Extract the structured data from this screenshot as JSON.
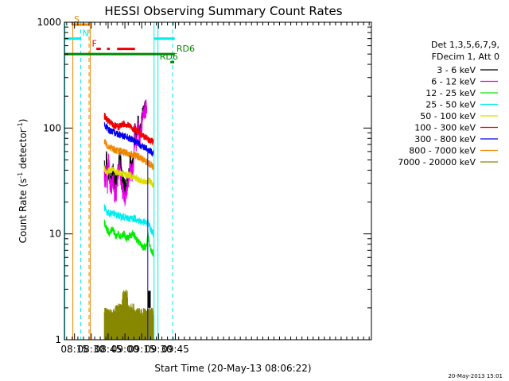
{
  "chart_data": {
    "type": "line",
    "title": "HESSI Observing Summary Count Rates",
    "xlabel": "Start Time (20-May-13 08:06:22)",
    "ylabel_main": "Count Rate (s",
    "ylabel_sup1": "-1",
    "ylabel_mid": " detector",
    "ylabel_sup2": "-1",
    "ylabel_end": ")",
    "timestamp": "20-May-2013 15:01",
    "x_range_min": [
      486,
      760
    ],
    "x_ticks": [
      {
        "min": 495,
        "label": "08:15"
      },
      {
        "min": 510,
        "label": "08:30"
      },
      {
        "min": 525,
        "label": "08:45"
      },
      {
        "min": 540,
        "label": "09:00"
      },
      {
        "min": 555,
        "label": "09:15"
      },
      {
        "min": 570,
        "label": "09:30"
      },
      {
        "min": 585,
        "label": "09:45"
      }
    ],
    "y_scale": "log",
    "y_range": [
      1,
      1000
    ],
    "y_ticks": [
      {
        "value": 1000,
        "label": "1000"
      },
      {
        "value": 100,
        "label": "100"
      },
      {
        "value": 10,
        "label": "10"
      },
      {
        "value": 1,
        "label": "1"
      }
    ],
    "legend": {
      "header1": "Det 1,3,5,6,7,9,",
      "header2": "FDecim 1, Att 0",
      "position": "right"
    },
    "series": [
      {
        "name": "3 - 6 keV",
        "color": "#000000",
        "points": [
          [
            521.6,
            45
          ],
          [
            522.5,
            35
          ],
          [
            523.5,
            55
          ],
          [
            524.5,
            36
          ],
          [
            525.5,
            40
          ],
          [
            526.5,
            35
          ],
          [
            528,
            34
          ],
          [
            529.5,
            38
          ],
          [
            531,
            30
          ],
          [
            532.5,
            32
          ],
          [
            534,
            40
          ],
          [
            535.5,
            55
          ],
          [
            537,
            38
          ],
          [
            538.5,
            30
          ],
          [
            540,
            27
          ],
          [
            541.5,
            28
          ],
          [
            543,
            34
          ],
          [
            544.5,
            48
          ],
          [
            546,
            42
          ],
          [
            547.5,
            50
          ],
          [
            549,
            110
          ],
          [
            550,
            80
          ],
          [
            551.5,
            125
          ],
          [
            553,
            85
          ],
          [
            554.5,
            110
          ],
          [
            556,
            150
          ],
          [
            557.5,
            160
          ],
          [
            558.5,
            155
          ],
          [
            559.5,
            160
          ]
        ]
      },
      {
        "name": "6 - 12 keV",
        "color": "#e800e8",
        "points": [
          [
            521.6,
            38
          ],
          [
            522.5,
            28
          ],
          [
            523.5,
            40
          ],
          [
            524.5,
            28
          ],
          [
            525.5,
            50
          ],
          [
            526.5,
            30
          ],
          [
            528,
            28
          ],
          [
            529.5,
            33
          ],
          [
            531,
            22
          ],
          [
            532.5,
            25
          ],
          [
            534,
            38
          ],
          [
            535.5,
            45
          ],
          [
            537,
            28
          ],
          [
            538.5,
            24
          ],
          [
            540,
            22
          ],
          [
            541.5,
            24
          ],
          [
            543,
            30
          ],
          [
            544.5,
            40
          ],
          [
            546,
            36
          ],
          [
            547.5,
            43
          ],
          [
            549,
            90
          ],
          [
            550,
            70
          ],
          [
            551.5,
            110
          ],
          [
            553,
            75
          ],
          [
            554.5,
            95
          ],
          [
            556,
            130
          ],
          [
            557.5,
            145
          ],
          [
            558.5,
            150
          ],
          [
            559.5,
            155
          ]
        ]
      },
      {
        "name": "12 - 25 keV",
        "color": "#00ee00",
        "points": [
          [
            521.6,
            13
          ],
          [
            524,
            11
          ],
          [
            526.5,
            10
          ],
          [
            529,
            11.5
          ],
          [
            531.5,
            9.5
          ],
          [
            534,
            10
          ],
          [
            536.5,
            9.5
          ],
          [
            539,
            10
          ],
          [
            541.5,
            9
          ],
          [
            544,
            9.5
          ],
          [
            546.5,
            10
          ],
          [
            549,
            9.5
          ],
          [
            551.5,
            8.5
          ],
          [
            554,
            8
          ],
          [
            556.5,
            7.5
          ],
          [
            559.5,
            7.5
          ],
          [
            560.5,
            10
          ],
          [
            563,
            7
          ],
          [
            565.5,
            6.5
          ]
        ]
      },
      {
        "name": "25 - 50 keV",
        "color": "#00eeee",
        "points": [
          [
            521.6,
            18
          ],
          [
            524,
            16
          ],
          [
            526.5,
            15.5
          ],
          [
            529,
            16
          ],
          [
            531.5,
            15
          ],
          [
            534,
            15
          ],
          [
            536.5,
            14.5
          ],
          [
            539,
            14.5
          ],
          [
            541.5,
            14
          ],
          [
            544,
            14
          ],
          [
            546.5,
            14
          ],
          [
            549,
            14
          ],
          [
            551.5,
            13.5
          ],
          [
            554,
            13
          ],
          [
            556.5,
            13
          ],
          [
            559.5,
            12.5
          ],
          [
            560.5,
            13
          ],
          [
            563,
            11
          ],
          [
            565.5,
            10
          ]
        ]
      },
      {
        "name": "50 - 100 keV",
        "color": "#dddd00",
        "points": [
          [
            521.6,
            42
          ],
          [
            524,
            38
          ],
          [
            526.5,
            40
          ],
          [
            529,
            40
          ],
          [
            531.5,
            38
          ],
          [
            534,
            39
          ],
          [
            536.5,
            37
          ],
          [
            539,
            37
          ],
          [
            541.5,
            36
          ],
          [
            544,
            36
          ],
          [
            546.5,
            35
          ],
          [
            549,
            34
          ],
          [
            551.5,
            33
          ],
          [
            554,
            32
          ],
          [
            556.5,
            31
          ],
          [
            559.5,
            31
          ],
          [
            560.5,
            32
          ],
          [
            563,
            31
          ],
          [
            565.5,
            29
          ]
        ]
      },
      {
        "name": "100 - 300 keV",
        "color": "#ee0000",
        "points": [
          [
            521.6,
            130
          ],
          [
            524,
            120
          ],
          [
            526.5,
            112
          ],
          [
            529,
            108
          ],
          [
            531.5,
            104
          ],
          [
            534,
            102
          ],
          [
            536.5,
            106
          ],
          [
            539,
            110
          ],
          [
            541.5,
            108
          ],
          [
            544,
            105
          ],
          [
            546.5,
            100
          ],
          [
            549,
            97
          ],
          [
            551.5,
            93
          ],
          [
            554,
            88
          ],
          [
            556.5,
            84
          ],
          [
            559.5,
            80
          ],
          [
            560.5,
            78
          ],
          [
            563,
            76
          ],
          [
            565.5,
            74
          ]
        ]
      },
      {
        "name": "300 - 800 keV",
        "color": "#0000ee",
        "points": [
          [
            521.6,
            110
          ],
          [
            524,
            100
          ],
          [
            526.5,
            95
          ],
          [
            529,
            92
          ],
          [
            531.5,
            90
          ],
          [
            534,
            88
          ],
          [
            536.5,
            86
          ],
          [
            539,
            84
          ],
          [
            541.5,
            82
          ],
          [
            544,
            80
          ],
          [
            546.5,
            77
          ],
          [
            549,
            74
          ],
          [
            551.5,
            72
          ],
          [
            554,
            69
          ],
          [
            556.5,
            66
          ],
          [
            559.5,
            64
          ],
          [
            560.5,
            63
          ],
          [
            563,
            60
          ],
          [
            565.5,
            57
          ]
        ]
      },
      {
        "name": "800 - 7000 keV",
        "color": "#ee8800",
        "points": [
          [
            521.6,
            75
          ],
          [
            524,
            69
          ],
          [
            526.5,
            66
          ],
          [
            529,
            64
          ],
          [
            531.5,
            62
          ],
          [
            534,
            61
          ],
          [
            536.5,
            60
          ],
          [
            539,
            59
          ],
          [
            541.5,
            58
          ],
          [
            544,
            57
          ],
          [
            546.5,
            56
          ],
          [
            549,
            55
          ],
          [
            551.5,
            54
          ],
          [
            554,
            52
          ],
          [
            556.5,
            50
          ],
          [
            559.5,
            48
          ],
          [
            560.5,
            47
          ],
          [
            563,
            45
          ],
          [
            565.5,
            43
          ]
        ]
      },
      {
        "name": "7000 - 20000 keV",
        "color": "#888800",
        "points": []
      }
    ],
    "bg_band": [
      {
        "from": 521.6,
        "to": 531.5,
        "level": "low"
      },
      {
        "from": 531.5,
        "to": 537.5,
        "level": "mid"
      },
      {
        "from": 537.5,
        "to": 542.5,
        "level": "high"
      },
      {
        "from": 542.5,
        "to": 548.5,
        "level": "mid"
      },
      {
        "from": 548.5,
        "to": 560.5,
        "level": "low"
      },
      {
        "from": 560.5,
        "to": 565.5,
        "level": "low"
      }
    ],
    "flags": [
      {
        "label": "S",
        "color": "#ee8800",
        "y": 950,
        "from": 493.5,
        "to": 508,
        "label_at": 494.5
      },
      {
        "label": "N",
        "color": "#00eeee",
        "y": 700,
        "from": 486,
        "to": 500.5,
        "label_at": 502
      },
      {
        "label": "F",
        "color": "#ee0000",
        "y": 560,
        "from": 514.5,
        "to": 518.5,
        "label_at": 510.5
      },
      {
        "label": "",
        "color": "#ee0000",
        "y": 560,
        "from": 524,
        "to": 526.5,
        "label_at": null
      },
      {
        "label": "",
        "color": "#ee0000",
        "y": 560,
        "from": 533,
        "to": 549,
        "label_at": null
      },
      {
        "label": "RD6",
        "color": "#008800",
        "y": 500,
        "from": 486,
        "to": 584.5,
        "label_at": 586
      },
      {
        "label": "RD6",
        "color": "#008800",
        "y": 420,
        "from": 580.5,
        "to": 584,
        "label_at": 571
      }
    ],
    "cyan_bar": {
      "color": "#00eeee",
      "y": 700,
      "from": 566,
      "to": 584.5
    },
    "verticals": [
      {
        "min": 486.4,
        "color": "#00eeee",
        "dash": false
      },
      {
        "min": 493.5,
        "color": "#ee8800",
        "dash": false
      },
      {
        "min": 500.5,
        "color": "#00eeee",
        "dash": true
      },
      {
        "min": 508,
        "color": "#ee8800",
        "dash": true
      },
      {
        "min": 509,
        "color": "#ee8800",
        "dash": false
      },
      {
        "min": 566,
        "color": "#00eeee",
        "dash": false
      },
      {
        "min": 569.5,
        "color": "#00eeee",
        "dash": false
      },
      {
        "min": 582.5,
        "color": "#00eeee",
        "dash": true
      }
    ]
  }
}
